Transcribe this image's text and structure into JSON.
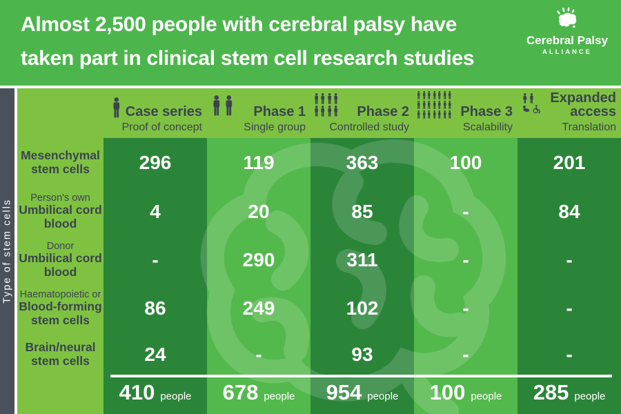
{
  "header": {
    "title_line1": "Almost 2,500 people with cerebral palsy have",
    "title_line2": "taken part in clinical stem cell research studies",
    "logo": {
      "name": "Cerebral Palsy",
      "sub": "ALLIANCE"
    }
  },
  "sidebar": {
    "vertical_label": "Type of stem cells"
  },
  "columns": [
    {
      "title": "Case series",
      "subtitle": "Proof of concept",
      "icon": "one-person",
      "shade": "dark"
    },
    {
      "title": "Phase 1",
      "subtitle": "Single group",
      "icon": "two-people",
      "shade": "medium"
    },
    {
      "title": "Phase 2",
      "subtitle": "Controlled study",
      "icon": "people-group-8",
      "shade": "dark"
    },
    {
      "title": "Phase 3",
      "subtitle": "Scalability",
      "icon": "people-group-21",
      "shade": "medium"
    },
    {
      "title": "Expanded access",
      "subtitle": "Translation",
      "icon": "family-accessibility",
      "shade": "dark"
    }
  ],
  "rows": [
    {
      "qualifier": "",
      "label_lines": [
        "Mesenchymal",
        "stem cells"
      ],
      "values": [
        "296",
        "119",
        "363",
        "100",
        "201"
      ]
    },
    {
      "qualifier": "Person's own",
      "label_lines": [
        "Umbilical cord",
        "blood"
      ],
      "values": [
        "4",
        "20",
        "85",
        "-",
        "84"
      ]
    },
    {
      "qualifier": "Donor",
      "label_lines": [
        "Umbilical cord",
        "blood"
      ],
      "values": [
        "-",
        "290",
        "311",
        "-",
        "-"
      ]
    },
    {
      "qualifier": "Haematopoietic or",
      "label_lines": [
        "Blood-forming",
        "stem cells"
      ],
      "values": [
        "86",
        "249",
        "102",
        "-",
        "-"
      ]
    },
    {
      "qualifier": "",
      "label_lines": [
        "Brain/neural",
        "stem cells"
      ],
      "values": [
        "24",
        "-",
        "93",
        "-",
        "-"
      ]
    }
  ],
  "totals": {
    "values": [
      "410",
      "678",
      "954",
      "100",
      "285"
    ],
    "unit": "people"
  },
  "colors": {
    "header_green": "#4CB64C",
    "body_green": "#7FC242",
    "column_dark_green": "#2B8539",
    "column_medium_green": "#54B94C",
    "sidebar_gray": "#49515A",
    "text_dark": "#3B444E",
    "white": "#FFFFFF"
  },
  "chart_data": {
    "type": "table",
    "title": "Almost 2,500 people with cerebral palsy have taken part in clinical stem cell research studies",
    "row_axis_label": "Type of stem cells",
    "columns": [
      "Case series (Proof of concept)",
      "Phase 1 (Single group)",
      "Phase 2 (Controlled study)",
      "Phase 3 (Scalability)",
      "Expanded access (Translation)"
    ],
    "rows": [
      "Mesenchymal stem cells",
      "Person's own Umbilical cord blood",
      "Donor Umbilical cord blood",
      "Haematopoietic or Blood-forming stem cells",
      "Brain/neural stem cells"
    ],
    "values": [
      [
        296,
        119,
        363,
        100,
        201
      ],
      [
        4,
        20,
        85,
        null,
        84
      ],
      [
        null,
        290,
        311,
        null,
        null
      ],
      [
        86,
        249,
        102,
        null,
        null
      ],
      [
        24,
        null,
        93,
        null,
        null
      ]
    ],
    "column_totals": [
      410,
      678,
      954,
      100,
      285
    ],
    "totals_unit": "people"
  }
}
